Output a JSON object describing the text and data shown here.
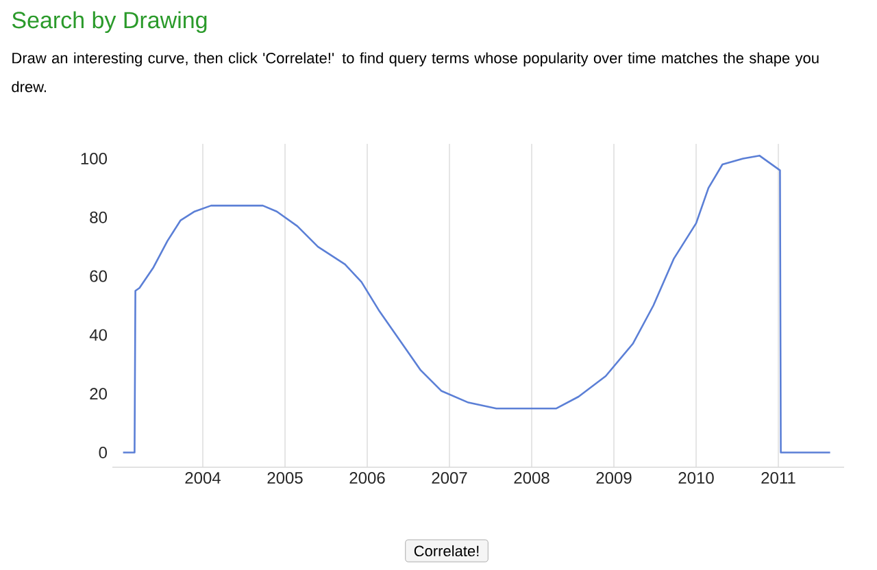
{
  "chart_data": {
    "type": "line",
    "title": "Search by Drawing",
    "subtitle": "Draw an interesting curve, then click 'Correlate!' to find query terms whose popularity over time matches the shape you drew.",
    "annotations": [
      "Correlate!"
    ],
    "x": [
      2003.03,
      2003.17,
      2003.18,
      2003.23,
      2003.4,
      2003.57,
      2003.73,
      2003.9,
      2004.1,
      2004.73,
      2004.9,
      2005.15,
      2005.4,
      2005.73,
      2005.93,
      2006.15,
      2006.4,
      2006.65,
      2006.9,
      2007.23,
      2007.57,
      2008.3,
      2008.57,
      2008.9,
      2009.23,
      2009.48,
      2009.73,
      2010.0,
      2010.15,
      2010.32,
      2010.57,
      2010.77,
      2011.02,
      2011.03,
      2011.63
    ],
    "series": [
      {
        "color": "#5b7fd6",
        "values": [
          0,
          0,
          55,
          56,
          63,
          72,
          79,
          82,
          84,
          84,
          82,
          77,
          70,
          64,
          58,
          48,
          38,
          28,
          21,
          17,
          15,
          15,
          19,
          26,
          37,
          50,
          66,
          78,
          90,
          98,
          100,
          101,
          96,
          0,
          0
        ]
      }
    ],
    "xlim": [
      2002.9,
      2011.8
    ],
    "ylim": [
      -5,
      105
    ],
    "xticks": [
      2004,
      2005,
      2006,
      2007,
      2008,
      2009,
      2010,
      2011
    ],
    "yticks": [
      0,
      20,
      40,
      60,
      80,
      100
    ],
    "grid": "x",
    "line_style": "solid"
  }
}
